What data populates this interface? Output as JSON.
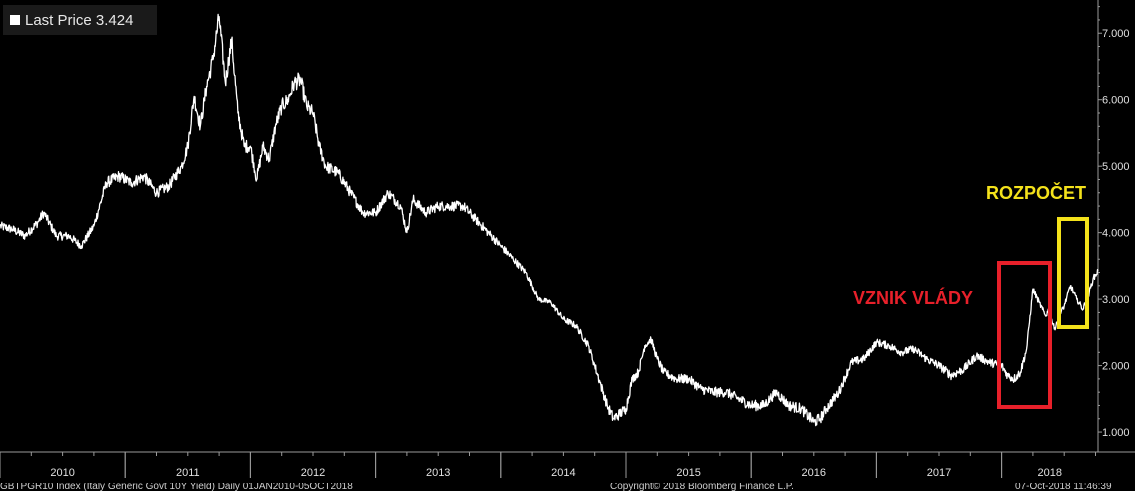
{
  "legend": {
    "label": "Last Price",
    "value": "3.424"
  },
  "annotations": [
    {
      "text": "VZNIK VLÁDY",
      "color": "#e8202a"
    },
    {
      "text": "ROZPOČET",
      "color": "#f4e21b"
    }
  ],
  "footer": {
    "left": "GBTPGR10 Index (Italy Generic Govt 10Y Yield)  Daily 01JAN2010-05OCT2018",
    "center": "Copyright© 2018 Bloomberg Finance L.P.",
    "right": "07-Oct-2018 11:46:39"
  },
  "colors": {
    "background": "#000000",
    "line": "#ffffff",
    "axis": "#9a9a9a"
  },
  "chart_data": {
    "type": "line",
    "title": "",
    "xlabel": "",
    "ylabel": "",
    "grid": false,
    "legend_position": "top-left",
    "xlim": [
      2010.0,
      2018.77
    ],
    "ylim": [
      0.7,
      7.5
    ],
    "x_tick_labels": [
      "2010",
      "2011",
      "2012",
      "2013",
      "2014",
      "2015",
      "2016",
      "2017",
      "2018"
    ],
    "y_tick_labels": [
      "1.000",
      "2.000",
      "3.000",
      "4.000",
      "5.000",
      "6.000",
      "7.000"
    ],
    "series": [
      {
        "name": "Last Price",
        "x": [
          2010.0,
          2010.1,
          2010.2,
          2010.3,
          2010.35,
          2010.45,
          2010.55,
          2010.65,
          2010.75,
          2010.85,
          2010.95,
          2011.05,
          2011.15,
          2011.25,
          2011.35,
          2011.45,
          2011.5,
          2011.55,
          2011.6,
          2011.65,
          2011.7,
          2011.75,
          2011.8,
          2011.85,
          2011.9,
          2011.95,
          2012.0,
          2012.05,
          2012.1,
          2012.15,
          2012.2,
          2012.25,
          2012.3,
          2012.35,
          2012.4,
          2012.45,
          2012.5,
          2012.55,
          2012.6,
          2012.7,
          2012.8,
          2012.9,
          2013.0,
          2013.1,
          2013.2,
          2013.25,
          2013.3,
          2013.4,
          2013.5,
          2013.6,
          2013.7,
          2013.8,
          2013.9,
          2014.0,
          2014.1,
          2014.2,
          2014.3,
          2014.4,
          2014.5,
          2014.6,
          2014.7,
          2014.75,
          2014.8,
          2014.85,
          2014.9,
          2015.0,
          2015.05,
          2015.1,
          2015.15,
          2015.2,
          2015.25,
          2015.3,
          2015.4,
          2015.5,
          2015.6,
          2015.7,
          2015.8,
          2015.9,
          2016.0,
          2016.1,
          2016.15,
          2016.2,
          2016.3,
          2016.4,
          2016.5,
          2016.55,
          2016.6,
          2016.7,
          2016.8,
          2016.9,
          2017.0,
          2017.1,
          2017.2,
          2017.3,
          2017.4,
          2017.5,
          2017.6,
          2017.7,
          2017.8,
          2017.9,
          2018.0,
          2018.05,
          2018.1,
          2018.15,
          2018.2,
          2018.25,
          2018.3,
          2018.35,
          2018.38,
          2018.42,
          2018.45,
          2018.5,
          2018.55,
          2018.6,
          2018.65,
          2018.7,
          2018.73,
          2018.77
        ],
        "values": [
          4.1,
          4.05,
          3.95,
          4.15,
          4.3,
          3.95,
          3.95,
          3.8,
          4.1,
          4.75,
          4.85,
          4.75,
          4.85,
          4.6,
          4.7,
          5.0,
          5.3,
          6.05,
          5.6,
          6.2,
          6.6,
          7.25,
          6.25,
          6.9,
          5.8,
          5.3,
          5.3,
          4.8,
          5.3,
          5.1,
          5.6,
          5.9,
          6.0,
          6.25,
          6.3,
          5.9,
          5.8,
          5.3,
          5.0,
          4.9,
          4.6,
          4.3,
          4.3,
          4.6,
          4.4,
          4.0,
          4.5,
          4.3,
          4.4,
          4.4,
          4.4,
          4.2,
          4.0,
          3.8,
          3.6,
          3.4,
          3.0,
          2.95,
          2.7,
          2.6,
          2.3,
          2.0,
          1.7,
          1.4,
          1.2,
          1.35,
          1.8,
          1.9,
          2.3,
          2.4,
          2.1,
          1.9,
          1.8,
          1.8,
          1.65,
          1.6,
          1.6,
          1.5,
          1.4,
          1.4,
          1.5,
          1.6,
          1.4,
          1.35,
          1.15,
          1.2,
          1.35,
          1.6,
          2.05,
          2.1,
          2.35,
          2.3,
          2.2,
          2.25,
          2.1,
          2.0,
          1.85,
          1.95,
          2.15,
          2.05,
          2.0,
          1.85,
          1.8,
          1.9,
          2.25,
          3.15,
          2.95,
          2.75,
          2.85,
          2.55,
          2.7,
          2.9,
          3.2,
          3.0,
          2.85,
          3.1,
          3.3,
          3.424
        ]
      }
    ]
  }
}
